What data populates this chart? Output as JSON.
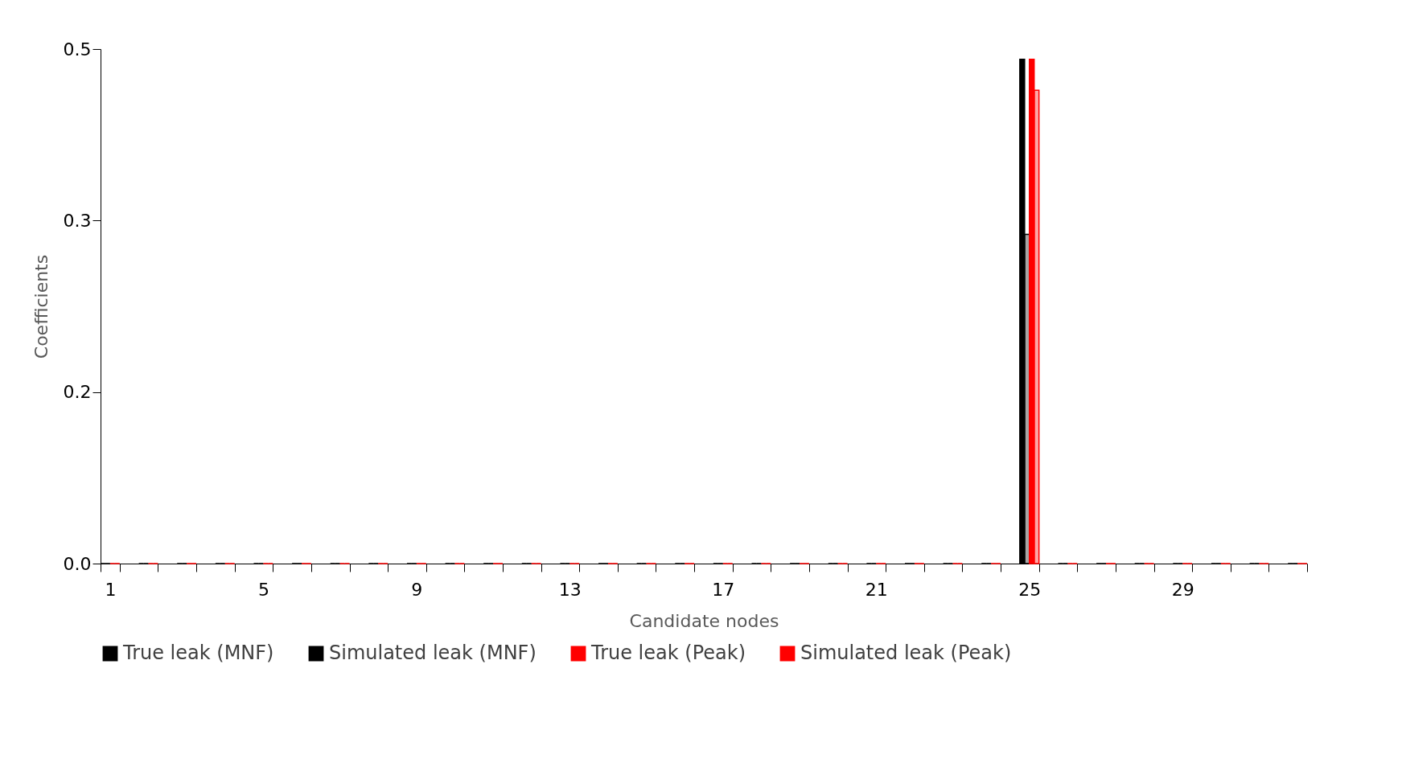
{
  "chart_data": {
    "type": "bar",
    "categories": [
      "1",
      null,
      null,
      null,
      "5",
      null,
      null,
      null,
      "9",
      null,
      null,
      null,
      "13",
      null,
      null,
      null,
      "17",
      null,
      null,
      null,
      "21",
      null,
      null,
      null,
      "25",
      null,
      null,
      null,
      "29",
      null,
      null,
      null
    ],
    "series": [
      {
        "name": "True leak (MNF)",
        "color": "#000000",
        "values": [
          0,
          0,
          0,
          0,
          0,
          0,
          0,
          0,
          0,
          0,
          0,
          0,
          0,
          0,
          0,
          0,
          0,
          0,
          0,
          0,
          0,
          0,
          0,
          0,
          0.49,
          0,
          0,
          0,
          0,
          0,
          0,
          0
        ]
      },
      {
        "name": "Simulated leak (MNF)",
        "color": "#000000",
        "values": [
          0,
          0,
          0,
          0,
          0,
          0,
          0,
          0,
          0,
          0,
          0,
          0,
          0,
          0,
          0,
          0,
          0,
          0,
          0,
          0,
          0,
          0,
          0,
          0,
          0.32,
          0,
          0,
          0,
          0,
          0,
          0,
          0
        ]
      },
      {
        "name": "True leak (Peak)",
        "color": "#ff0000",
        "values": [
          0,
          0,
          0,
          0,
          0,
          0,
          0,
          0,
          0,
          0,
          0,
          0,
          0,
          0,
          0,
          0,
          0,
          0,
          0,
          0,
          0,
          0,
          0,
          0,
          0.49,
          0,
          0,
          0,
          0,
          0,
          0,
          0
        ]
      },
      {
        "name": "Simulated leak (Peak)",
        "color": "#ff0000",
        "values": [
          0,
          0,
          0,
          0,
          0,
          0,
          0,
          0,
          0,
          0,
          0,
          0,
          0,
          0,
          0,
          0,
          0,
          0,
          0,
          0,
          0,
          0,
          0,
          0,
          0.46,
          0,
          0,
          0,
          0,
          0,
          0,
          0
        ]
      }
    ],
    "xlabel": "Candidate nodes",
    "ylabel": "Coefficients",
    "ylim": [
      0,
      0.5
    ],
    "yticks": [
      {
        "value": 0,
        "label": "0.0"
      },
      {
        "value": 0.1667,
        "label": "0.2"
      },
      {
        "value": 0.3333,
        "label": "0.3"
      },
      {
        "value": 0.5,
        "label": "0.5"
      }
    ],
    "grid": false,
    "legend": "bottom"
  }
}
